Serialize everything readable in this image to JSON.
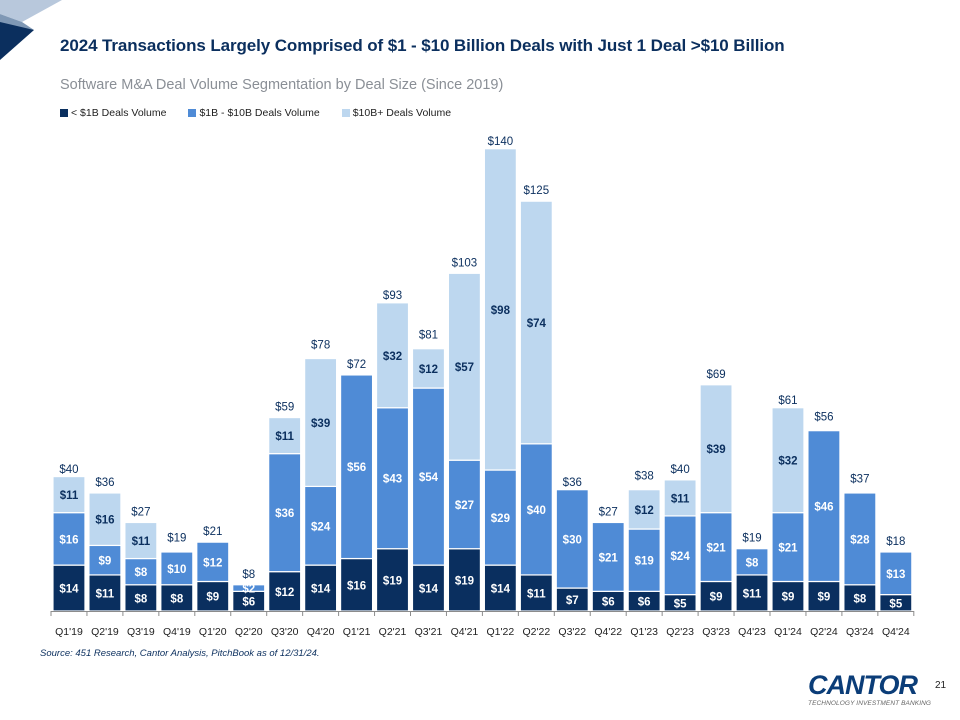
{
  "slide": {
    "title": "2024 Transactions Largely Comprised of $1 - $10 Billion Deals with Just 1 Deal >$10 Billion",
    "subtitle": "Software M&A Deal Volume Segmentation by Deal Size (Since 2019)",
    "source": "Source: 451 Research, Cantor Analysis, PitchBook as of 12/31/24.",
    "page_number": "21",
    "logo": {
      "word": "CANTOR",
      "tagline": "TECHNOLOGY INVESTMENT BANKING"
    }
  },
  "colors": {
    "navy": "#0b2f5e",
    "small_deals": "#0a2f5f",
    "mid_deals": "#4f8bd6",
    "large_deals": "#bdd7ef",
    "corner_light": "#b8c8dc",
    "corner_mid": "#7f98b5"
  },
  "chart_data": {
    "type": "bar",
    "stacked": true,
    "title": "Software M&A Deal Volume Segmentation by Deal Size (Since 2019)",
    "xlabel": "",
    "ylabel": "",
    "value_prefix": "$",
    "grid": false,
    "legend_position": "top-left",
    "ylim": [
      0,
      140
    ],
    "categories": [
      "Q1'19",
      "Q2'19",
      "Q3'19",
      "Q4'19",
      "Q1'20",
      "Q2'20",
      "Q3'20",
      "Q4'20",
      "Q1'21",
      "Q2'21",
      "Q3'21",
      "Q4'21",
      "Q1'22",
      "Q2'22",
      "Q3'22",
      "Q4'22",
      "Q1'23",
      "Q2'23",
      "Q3'23",
      "Q4'23",
      "Q1'24",
      "Q2'24",
      "Q3'24",
      "Q4'24"
    ],
    "series": [
      {
        "name": "< $1B Deals Volume",
        "color": "#0a2f5f",
        "label_color": "#ffffff",
        "values": [
          14,
          11,
          8,
          8,
          9,
          6,
          12,
          14,
          16,
          19,
          14,
          19,
          14,
          11,
          7,
          6,
          6,
          5,
          9,
          11,
          9,
          9,
          8,
          5
        ]
      },
      {
        "name": "$1B  - $10B Deals Volume",
        "color": "#4f8bd6",
        "label_color": "#ffffff",
        "values": [
          16,
          9,
          8,
          10,
          12,
          2,
          36,
          24,
          56,
          43,
          54,
          27,
          29,
          40,
          30,
          21,
          19,
          24,
          21,
          8,
          21,
          46,
          28,
          13
        ]
      },
      {
        "name": "$10B+ Deals Volume",
        "color": "#bdd7ef",
        "label_color": "#0b2f5e",
        "values": [
          11,
          16,
          11,
          0,
          0,
          0,
          11,
          39,
          0,
          32,
          12,
          57,
          98,
          74,
          0,
          0,
          12,
          11,
          39,
          0,
          32,
          0,
          0,
          0
        ]
      }
    ],
    "totals": [
      40,
      36,
      27,
      19,
      21,
      8,
      59,
      78,
      72,
      93,
      81,
      103,
      140,
      125,
      36,
      27,
      38,
      40,
      69,
      19,
      61,
      56,
      37,
      18
    ]
  }
}
